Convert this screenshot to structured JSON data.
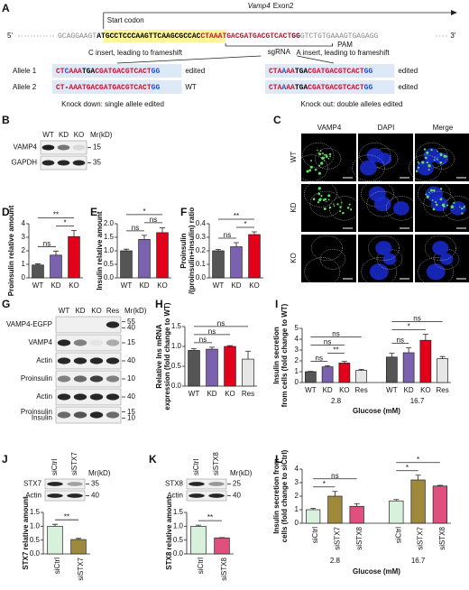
{
  "panels": {
    "A": {
      "label": "A",
      "start": "Start codon",
      "gene": "Vamp4",
      "exon": "Exon2",
      "five": "5'",
      "three": "3'",
      "sequence": [
        {
          "text": "GCAGGAAGT",
          "color": "#888888"
        },
        {
          "text": "ATGCCTCCCAAGTTCAAGCGCCAC",
          "color": "#000000",
          "highlight": "#fff59a",
          "bold": true
        },
        {
          "text": "CTAAATGACGATGACGTCACT",
          "color": "#c8102e",
          "bold": true
        },
        {
          "text": "GG",
          "color": "#8b0020",
          "bold": true
        },
        {
          "text": "GTCTGTGAAAGTGAGAGG",
          "color": "#888888"
        }
      ],
      "sgrna": "sgRNA",
      "pam": "PAM",
      "left_note": "C insert, leading to frameshift",
      "right_note": "A insert, leading to frameshift",
      "allele_names": [
        "Allele 1",
        "Allele 2"
      ],
      "left": [
        {
          "segments": [
            {
              "text": "CT",
              "color": "#c8102e"
            },
            {
              "text": "C",
              "color": "#1f4fd1"
            },
            {
              "text": "AAA",
              "color": "#c8102e"
            },
            {
              "text": "TGA",
              "color": "#000000"
            },
            {
              "text": "CGATGACGTCACT",
              "color": "#c8102e"
            },
            {
              "text": "GG",
              "color": "#1f4fd1"
            }
          ],
          "status": "edited"
        },
        {
          "segments": [
            {
              "text": "CT",
              "color": "#c8102e"
            },
            {
              "text": "-",
              "color": "#000000"
            },
            {
              "text": "AAATGACGATGACGTCACT",
              "color": "#c8102e"
            },
            {
              "text": "GG",
              "color": "#1f4fd1"
            }
          ],
          "status": "WT"
        }
      ],
      "right": [
        {
          "segments": [
            {
              "text": "CTA",
              "color": "#c8102e"
            },
            {
              "text": "A",
              "color": "#1f4fd1"
            },
            {
              "text": "AA",
              "color": "#c8102e"
            },
            {
              "text": "TGA",
              "color": "#000000"
            },
            {
              "text": "CGATGACGTCACT",
              "color": "#c8102e"
            },
            {
              "text": "GG",
              "color": "#1f4fd1"
            }
          ],
          "status": "edited"
        },
        {
          "segments": [
            {
              "text": "CTA",
              "color": "#c8102e"
            },
            {
              "text": "A",
              "color": "#1f4fd1"
            },
            {
              "text": "AA",
              "color": "#c8102e"
            },
            {
              "text": "TGA",
              "color": "#000000"
            },
            {
              "text": "CGATGACGTCACT",
              "color": "#c8102e"
            },
            {
              "text": "GG",
              "color": "#1f4fd1"
            }
          ],
          "status": "edited"
        }
      ],
      "left_caption": "Knock down: single allele edited",
      "right_caption": "Knock out: double alleles edited"
    },
    "B": {
      "label": "B",
      "lanes": [
        "WT",
        "KD",
        "KO"
      ],
      "mr": "Mr(kD)",
      "rows": [
        {
          "names": [
            "VAMP4"
          ],
          "markers": [
            "15"
          ],
          "bands": [
            0.95,
            0.55,
            0.1
          ]
        },
        {
          "names": [
            "GAPDH"
          ],
          "markers": [
            "35"
          ],
          "bands": [
            0.9,
            0.9,
            0.9
          ]
        }
      ]
    },
    "C": {
      "label": "C",
      "columns": [
        "VAMP4",
        "DAPI",
        "Merge"
      ],
      "column_colors": [
        "#2ca02c",
        "#2233dd",
        "#000000"
      ],
      "rows": [
        "WT",
        "KD",
        "KO"
      ]
    },
    "G": {
      "label": "G",
      "lanes": [
        "WT",
        "KD",
        "KO",
        "Res"
      ],
      "mr": "Mr(kD)",
      "rows": [
        {
          "names": [
            "VAMP4-EGFP"
          ],
          "markers": [
            "55",
            "40"
          ],
          "bands": [
            0,
            0,
            0,
            0.9
          ]
        },
        {
          "names": [
            "VAMP4"
          ],
          "markers": [
            "15"
          ],
          "bands": [
            0.9,
            0.5,
            0.05,
            0.3
          ]
        },
        {
          "names": [
            "Actin"
          ],
          "markers": [
            "40"
          ],
          "bands": [
            0.9,
            0.9,
            0.9,
            0.9
          ]
        },
        {
          "names": [
            "Proinsulin"
          ],
          "markers": [
            "10"
          ],
          "bands": [
            0.5,
            0.6,
            0.8,
            0.5
          ]
        },
        {
          "names": [
            "Actin"
          ],
          "markers": [
            "40"
          ],
          "bands": [
            0.9,
            0.9,
            0.9,
            0.9
          ]
        },
        {
          "names": [
            "Proinsulin",
            "Insulin"
          ],
          "markers": [
            "15",
            "10"
          ],
          "bands": [
            0.6,
            0.7,
            0.9,
            0.6
          ]
        }
      ]
    },
    "J": {
      "lanes": [
        "siCtrl",
        "siSTX7"
      ],
      "mr": "Mr(kD)",
      "rows": [
        {
          "names": [
            "STX7"
          ],
          "markers": [
            "35"
          ],
          "bands": [
            0.9,
            0.35
          ]
        },
        {
          "names": [
            "Actin"
          ],
          "markers": [
            "40"
          ],
          "bands": [
            0.9,
            0.9
          ]
        }
      ]
    },
    "K": {
      "lanes": [
        "siCtrl",
        "siSTX8"
      ],
      "mr": "Mr(kD)",
      "rows": [
        {
          "names": [
            "STX8"
          ],
          "markers": [
            "25"
          ],
          "bands": [
            0.9,
            0.4
          ]
        },
        {
          "names": [
            "Actin"
          ],
          "markers": [
            "40"
          ],
          "bands": [
            0.9,
            0.9
          ]
        }
      ]
    }
  },
  "chart_data": [
    {
      "type": "bar",
      "panel": "D",
      "ylabel": [
        "Proinsulin relative amount"
      ],
      "categories": [
        "WT",
        "KD",
        "KO"
      ],
      "values": [
        0.95,
        1.68,
        3.05
      ],
      "errors": [
        0.08,
        0.3,
        0.45
      ],
      "colors": [
        "#555555",
        "#7b62ae",
        "#e3001b"
      ],
      "ylim": [
        0,
        4
      ],
      "yticks": [
        0,
        1,
        2,
        3,
        4
      ],
      "annotations": [
        {
          "label": "ns",
          "between": [
            0,
            1
          ]
        },
        {
          "label": "*",
          "between": [
            1,
            2
          ]
        },
        {
          "label": "**",
          "between": [
            0,
            2
          ]
        }
      ]
    },
    {
      "type": "bar",
      "panel": "E",
      "ylabel": [
        "Insulin relative amount"
      ],
      "categories": [
        "WT",
        "KD",
        "KO"
      ],
      "values": [
        1.0,
        1.42,
        1.67
      ],
      "errors": [
        0.06,
        0.15,
        0.18
      ],
      "colors": [
        "#555555",
        "#7b62ae",
        "#e3001b"
      ],
      "ylim": [
        0,
        2
      ],
      "yticks": [
        {
          "value": 0,
          "label": "0.0"
        },
        0.5,
        {
          "value": 1,
          "label": "1.0"
        },
        1.5,
        {
          "value": 2,
          "label": "2.0"
        }
      ],
      "annotations": [
        {
          "label": "ns",
          "between": [
            0,
            1
          ]
        },
        {
          "label": "ns",
          "between": [
            1,
            2
          ]
        },
        {
          "label": "*",
          "between": [
            0,
            2
          ]
        }
      ]
    },
    {
      "type": "bar",
      "panel": "F",
      "ylabel": [
        "Proinsulin",
        "/(proinsulin+insulin) ratio"
      ],
      "categories": [
        "WT",
        "KD",
        "KO"
      ],
      "values": [
        0.2,
        0.23,
        0.32
      ],
      "errors": [
        0.01,
        0.03,
        0.02
      ],
      "colors": [
        "#555555",
        "#7b62ae",
        "#e3001b"
      ],
      "ylim": [
        0,
        0.4
      ],
      "yticks": [
        {
          "value": 0,
          "label": "0.0"
        },
        0.1,
        0.2,
        0.3,
        0.4
      ],
      "annotations": [
        {
          "label": "ns",
          "between": [
            0,
            1
          ]
        },
        {
          "label": "*",
          "between": [
            1,
            2
          ]
        },
        {
          "label": "**",
          "between": [
            0,
            2
          ]
        }
      ]
    },
    {
      "type": "bar",
      "panel": "H",
      "ylabel": [
        "Relative Ins mRNA",
        "expression (fold change to WT)"
      ],
      "categories": [
        "WT",
        "KD",
        "KO",
        "Res"
      ],
      "values": [
        0.9,
        0.93,
        1.0,
        0.68
      ],
      "errors": [
        0.04,
        0.05,
        0.02,
        0.2
      ],
      "colors": [
        "#555555",
        "#7b62ae",
        "#e3001b",
        "#e6e6e6"
      ],
      "ylim": [
        0,
        1.5
      ],
      "yticks": [
        {
          "value": 0,
          "label": "0.0"
        },
        0.5,
        {
          "value": 1,
          "label": "1.0"
        },
        1.5
      ],
      "annotations": [
        {
          "label": "ns",
          "between": [
            0,
            1
          ]
        },
        {
          "label": "ns",
          "between": [
            0,
            2
          ]
        },
        {
          "label": "ns",
          "between": [
            0,
            3
          ]
        }
      ]
    },
    {
      "type": "bar",
      "panel": "I",
      "ylabel": [
        "Insulin secretion",
        "from cells (fold change to WT)"
      ],
      "categories": [
        "WT",
        "KD",
        "KO",
        "Res",
        "WT",
        "KD",
        "KO",
        "Res"
      ],
      "groups": [
        "2.8",
        "16.7"
      ],
      "xlabel": "Glucose (mM)",
      "values": [
        1.0,
        1.45,
        1.8,
        1.12,
        2.35,
        2.75,
        3.9,
        2.2
      ],
      "errors": [
        0.03,
        0.1,
        0.15,
        0.1,
        0.35,
        0.45,
        0.55,
        0.2
      ],
      "colors": [
        "#555555",
        "#7b62ae",
        "#e3001b",
        "#e6e6e6"
      ],
      "ylim": [
        0,
        5
      ],
      "yticks": [
        0,
        1,
        2,
        3,
        4,
        5
      ],
      "annotations": [
        {
          "label": "ns",
          "between": [
            0,
            1
          ]
        },
        {
          "label": "**",
          "between": [
            1,
            2
          ]
        },
        {
          "label": "ns",
          "between": [
            0,
            2
          ]
        },
        {
          "label": "ns",
          "between": [
            0,
            3
          ]
        },
        {
          "label": "ns",
          "between": [
            4,
            5
          ]
        },
        {
          "label": "*",
          "between": [
            4,
            6
          ]
        },
        {
          "label": "ns",
          "between": [
            4,
            7
          ]
        }
      ]
    },
    {
      "type": "bar",
      "panel": "J",
      "ylabel": [
        "STX7 relative amount"
      ],
      "categories": [
        "siCtrl",
        "siSTX7"
      ],
      "values": [
        1.0,
        0.52
      ],
      "errors": [
        0.07,
        0.04
      ],
      "colors": [
        "#d8f1dc",
        "#9f8a3c"
      ],
      "ylim": [
        0,
        1.5
      ],
      "yticks": [
        {
          "value": 0,
          "label": "0.0"
        },
        0.5,
        {
          "value": 1,
          "label": "1.0"
        },
        1.5
      ],
      "annotations": [
        {
          "label": "**",
          "between": [
            0,
            1
          ]
        }
      ]
    },
    {
      "type": "bar",
      "panel": "K",
      "ylabel": [
        "STX8 relative amount"
      ],
      "categories": [
        "siCtrl",
        "siSTX8"
      ],
      "values": [
        1.0,
        0.58
      ],
      "errors": [
        0.04,
        0.01
      ],
      "colors": [
        "#d8f1dc",
        "#e0507e"
      ],
      "ylim": [
        0,
        1.5
      ],
      "yticks": [
        {
          "value": 0,
          "label": "0.0"
        },
        0.5,
        {
          "value": 1,
          "label": "1.0"
        },
        1.5
      ],
      "annotations": [
        {
          "label": "**",
          "between": [
            0,
            1
          ]
        }
      ]
    },
    {
      "type": "bar",
      "panel": "L",
      "ylabel": [
        "Insulin secretion from",
        "cells (fold change to siCtrl)"
      ],
      "categories": [
        "siCtrl",
        "siSTX7",
        "siSTX8",
        "siCtrl",
        "siSTX7",
        "siSTX8"
      ],
      "groups": [
        "2.8",
        "16.7"
      ],
      "xlabel": "Glucose (mM)",
      "values": [
        1.0,
        2.0,
        1.25,
        1.65,
        3.2,
        2.75
      ],
      "errors": [
        0.1,
        0.35,
        0.2,
        0.1,
        0.35,
        0.05
      ],
      "colors": [
        "#d8f1dc",
        "#9f8a3c",
        "#e0507e"
      ],
      "ylim": [
        0,
        4
      ],
      "yticks": [
        0,
        1,
        2,
        3,
        4
      ],
      "annotations": [
        {
          "label": "*",
          "between": [
            0,
            1
          ]
        },
        {
          "label": "ns",
          "between": [
            0,
            2
          ]
        },
        {
          "label": "*",
          "between": [
            3,
            4
          ]
        },
        {
          "label": "*",
          "between": [
            3,
            5
          ]
        }
      ]
    }
  ]
}
